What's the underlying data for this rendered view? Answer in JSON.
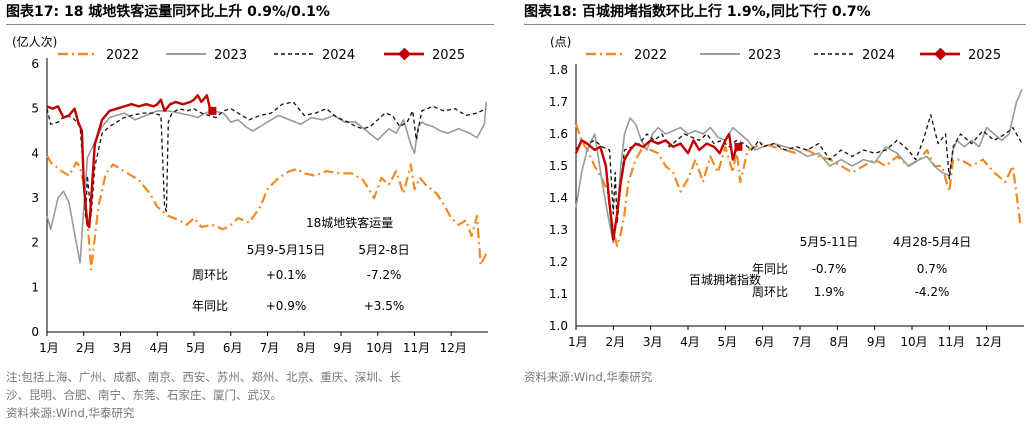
{
  "left": {
    "title": "图表17:  18 城地铁客运量同环比上升 0.9%/0.1%",
    "footnote_line1": "注:包括上海、广州、成都、南京、西安、苏州、郑州、北京、重庆、深圳、长",
    "footnote_line2": "沙、昆明、合肥、南宁、东莞、石家庄、厦门、武汉。",
    "source": "资料来源:Wind,华泰研究"
  },
  "right": {
    "title": "图表18:   百城拥堵指数环比上行 1.9%,同比下行 0.7%",
    "source": "资料来源:Wind,华泰研究"
  },
  "chart_data": [
    {
      "type": "line",
      "ylabel": "(亿人次)",
      "ylim": [
        0,
        6
      ],
      "yticks": [
        "0",
        "1",
        "2",
        "3",
        "4",
        "5",
        "6"
      ],
      "x_ticks": [
        "1月",
        "2月",
        "3月",
        "4月",
        "5月",
        "6月",
        "7月",
        "8月",
        "9月",
        "10月",
        "11月",
        "12月"
      ],
      "legend": [
        "2022",
        "2023",
        "2024",
        "2025"
      ],
      "colors": {
        "2022": "#F08A24",
        "2023": "#9A9A9A",
        "2024": "#111111",
        "2025": "#C00000"
      },
      "series": [
        {
          "name": "2022",
          "x": [
            0,
            0.1,
            0.25,
            0.4,
            0.6,
            0.8,
            0.9,
            1.0,
            1.1,
            1.2,
            1.4,
            1.6,
            1.8,
            2.0,
            2.2,
            2.5,
            2.8,
            3.0,
            3.3,
            3.6,
            3.8,
            4.0,
            4.2,
            4.5,
            4.8,
            5.0,
            5.2,
            5.5,
            5.8,
            6.0,
            6.3,
            6.6,
            6.8,
            7.0,
            7.3,
            7.6,
            8.0,
            8.3,
            8.6,
            8.9,
            9.1,
            9.3,
            9.5,
            9.7,
            9.9,
            10.0,
            10.15,
            10.3,
            10.6,
            10.8,
            11.0,
            11.2,
            11.4,
            11.55,
            11.7,
            11.8,
            11.95
          ],
          "y": [
            3.95,
            3.8,
            3.7,
            3.6,
            3.5,
            3.8,
            3.7,
            3.3,
            2.5,
            1.4,
            2.8,
            3.55,
            3.75,
            3.65,
            3.55,
            3.4,
            3.1,
            2.8,
            2.6,
            2.5,
            2.4,
            2.55,
            2.35,
            2.4,
            2.3,
            2.4,
            2.55,
            2.45,
            2.8,
            3.2,
            3.45,
            3.6,
            3.65,
            3.55,
            3.5,
            3.6,
            3.55,
            3.55,
            3.4,
            3.0,
            3.45,
            3.3,
            3.6,
            3.1,
            3.75,
            3.2,
            3.45,
            3.3,
            3.1,
            2.85,
            2.55,
            2.4,
            2.5,
            2.15,
            2.6,
            1.5,
            1.75
          ]
        },
        {
          "name": "2023",
          "x": [
            0,
            0.1,
            0.3,
            0.45,
            0.6,
            0.75,
            0.9,
            1.0,
            1.1,
            1.3,
            1.5,
            1.7,
            1.9,
            2.1,
            2.4,
            2.7,
            3.0,
            3.3,
            3.6,
            3.9,
            4.1,
            4.3,
            4.5,
            4.8,
            5.0,
            5.2,
            5.4,
            5.6,
            5.8,
            6.0,
            6.3,
            6.6,
            6.9,
            7.2,
            7.5,
            7.8,
            8.1,
            8.4,
            8.7,
            9.0,
            9.3,
            9.5,
            9.7,
            9.9,
            10.0,
            10.1,
            10.2,
            10.3,
            10.5,
            10.7,
            10.9,
            11.2,
            11.5,
            11.7,
            11.9,
            11.95
          ],
          "y": [
            2.6,
            2.3,
            3.0,
            3.15,
            2.9,
            2.2,
            1.55,
            2.8,
            3.9,
            4.25,
            4.6,
            4.8,
            4.85,
            4.9,
            4.75,
            4.85,
            4.95,
            4.95,
            4.9,
            4.85,
            4.8,
            4.9,
            4.95,
            4.9,
            4.7,
            4.75,
            4.6,
            4.5,
            4.6,
            4.7,
            4.85,
            4.75,
            4.65,
            4.8,
            4.75,
            4.85,
            4.7,
            4.7,
            4.5,
            4.3,
            4.55,
            4.45,
            4.75,
            4.2,
            4.0,
            4.6,
            4.7,
            4.65,
            4.6,
            4.5,
            4.45,
            4.55,
            4.45,
            4.35,
            4.65,
            5.15
          ]
        },
        {
          "name": "2024",
          "x": [
            0,
            0.1,
            0.3,
            0.5,
            0.7,
            0.9,
            1.0,
            1.05,
            1.1,
            1.2,
            1.3,
            1.5,
            1.7,
            1.9,
            2.1,
            2.3,
            2.6,
            2.9,
            3.1,
            3.2,
            3.25,
            3.3,
            3.4,
            3.6,
            3.8,
            4.0,
            4.2,
            4.4,
            4.6,
            4.8,
            5.0,
            5.2,
            5.5,
            5.8,
            6.1,
            6.4,
            6.7,
            7.0,
            7.3,
            7.6,
            7.9,
            8.2,
            8.4,
            8.6,
            8.8,
            9.0,
            9.2,
            9.4,
            9.6,
            9.8,
            9.95,
            10.05,
            10.2,
            10.5,
            10.8,
            11.1,
            11.4,
            11.7,
            11.95
          ],
          "y": [
            5.0,
            4.65,
            4.7,
            4.85,
            4.8,
            4.6,
            3.5,
            2.55,
            3.5,
            2.6,
            3.7,
            4.45,
            4.6,
            4.7,
            4.8,
            4.85,
            4.9,
            4.9,
            4.85,
            2.8,
            2.7,
            4.7,
            4.9,
            5.0,
            4.95,
            5.0,
            4.9,
            4.85,
            4.8,
            4.95,
            5.0,
            4.9,
            4.75,
            4.85,
            4.9,
            5.1,
            5.15,
            4.85,
            4.9,
            5.0,
            4.8,
            4.7,
            4.6,
            4.55,
            4.6,
            4.75,
            4.9,
            4.85,
            4.6,
            4.7,
            4.95,
            4.3,
            4.95,
            5.05,
            4.95,
            5.0,
            4.85,
            4.9,
            5.0
          ]
        },
        {
          "name": "2025",
          "x": [
            0,
            0.15,
            0.3,
            0.45,
            0.6,
            0.75,
            0.85,
            0.95,
            1.0,
            1.1,
            1.15,
            1.3,
            1.5,
            1.7,
            1.9,
            2.1,
            2.3,
            2.5,
            2.7,
            2.9,
            3.0,
            3.1,
            3.2,
            3.35,
            3.5,
            3.7,
            3.9,
            4.0,
            4.1,
            4.2,
            4.35,
            4.45
          ],
          "y": [
            5.05,
            5.0,
            5.05,
            4.8,
            4.85,
            5.0,
            4.7,
            4.5,
            3.3,
            2.4,
            2.35,
            4.2,
            4.75,
            4.95,
            5.0,
            5.05,
            5.1,
            5.05,
            5.1,
            5.05,
            5.1,
            5.2,
            4.95,
            5.1,
            5.15,
            5.1,
            5.15,
            5.2,
            5.3,
            5.15,
            5.3,
            4.95
          ]
        }
      ],
      "marker_2025_last": {
        "x": 4.5,
        "y": 4.95
      },
      "annotation": {
        "title": "18城地铁客运量",
        "col1": "5月9-5月15日",
        "col2": "5月2-8日",
        "row1_label": "周环比",
        "row1_v1": "+0.1%",
        "row1_v2": "-7.2%",
        "row2_label": "年同比",
        "row2_v1": "+0.9%",
        "row2_v2": "+3.5%"
      }
    },
    {
      "type": "line",
      "ylabel": "(点)",
      "ylim": [
        1.0,
        1.8
      ],
      "yticks": [
        "1.0",
        "1.1",
        "1.2",
        "1.3",
        "1.4",
        "1.5",
        "1.6",
        "1.7",
        "1.8"
      ],
      "x_ticks": [
        "1月",
        "2月",
        "3月",
        "4月",
        "5月",
        "6月",
        "7月",
        "8月",
        "9月",
        "10月",
        "11月",
        "12月"
      ],
      "legend": [
        "2022",
        "2023",
        "2024",
        "2025"
      ],
      "colors": {
        "2022": "#F08A24",
        "2023": "#9A9A9A",
        "2024": "#111111",
        "2025": "#C00000"
      },
      "series": [
        {
          "name": "2022",
          "x": [
            0,
            0.15,
            0.3,
            0.5,
            0.7,
            0.85,
            1.0,
            1.1,
            1.2,
            1.3,
            1.4,
            1.6,
            1.8,
            2.0,
            2.2,
            2.4,
            2.6,
            2.8,
            3.0,
            3.2,
            3.4,
            3.6,
            3.8,
            4.0,
            4.2,
            4.3,
            4.4,
            4.6,
            4.8,
            5.0,
            5.3,
            5.6,
            5.9,
            6.2,
            6.5,
            6.8,
            7.1,
            7.4,
            7.7,
            8.0,
            8.3,
            8.6,
            8.9,
            9.2,
            9.4,
            9.6,
            9.8,
            10.0,
            10.1,
            10.3,
            10.6,
            10.9,
            11.2,
            11.5,
            11.7,
            11.9
          ],
          "y": [
            1.63,
            1.58,
            1.55,
            1.5,
            1.46,
            1.42,
            1.3,
            1.25,
            1.29,
            1.35,
            1.45,
            1.52,
            1.56,
            1.55,
            1.54,
            1.5,
            1.48,
            1.42,
            1.46,
            1.52,
            1.45,
            1.53,
            1.48,
            1.56,
            1.48,
            1.55,
            1.45,
            1.55,
            1.56,
            1.57,
            1.56,
            1.55,
            1.54,
            1.55,
            1.53,
            1.52,
            1.5,
            1.48,
            1.5,
            1.52,
            1.5,
            1.53,
            1.5,
            1.52,
            1.55,
            1.5,
            1.5,
            1.42,
            1.52,
            1.52,
            1.5,
            1.52,
            1.48,
            1.45,
            1.5,
            1.32
          ]
        },
        {
          "name": "2023",
          "x": [
            0,
            0.15,
            0.3,
            0.5,
            0.7,
            0.85,
            1.0,
            1.1,
            1.2,
            1.3,
            1.45,
            1.6,
            1.75,
            1.9,
            2.05,
            2.2,
            2.4,
            2.6,
            2.8,
            3.0,
            3.2,
            3.4,
            3.6,
            3.8,
            4.0,
            4.2,
            4.4,
            4.6,
            4.8,
            5.0,
            5.3,
            5.6,
            5.9,
            6.2,
            6.5,
            6.8,
            7.1,
            7.4,
            7.7,
            8.0,
            8.3,
            8.6,
            8.9,
            9.2,
            9.4,
            9.6,
            9.8,
            10.0,
            10.1,
            10.2,
            10.4,
            10.6,
            10.8,
            11.0,
            11.2,
            11.4,
            11.6,
            11.8,
            11.95
          ],
          "y": [
            1.37,
            1.48,
            1.55,
            1.6,
            1.45,
            1.35,
            1.26,
            1.35,
            1.5,
            1.6,
            1.65,
            1.63,
            1.58,
            1.55,
            1.6,
            1.62,
            1.6,
            1.61,
            1.62,
            1.6,
            1.61,
            1.6,
            1.62,
            1.59,
            1.58,
            1.62,
            1.6,
            1.58,
            1.55,
            1.56,
            1.57,
            1.56,
            1.55,
            1.53,
            1.54,
            1.5,
            1.52,
            1.5,
            1.52,
            1.51,
            1.56,
            1.54,
            1.5,
            1.52,
            1.53,
            1.5,
            1.48,
            1.47,
            1.55,
            1.58,
            1.56,
            1.58,
            1.56,
            1.62,
            1.6,
            1.58,
            1.6,
            1.7,
            1.74
          ]
        },
        {
          "name": "2024",
          "x": [
            0,
            0.15,
            0.3,
            0.5,
            0.7,
            0.9,
            1.0,
            1.05,
            1.1,
            1.2,
            1.3,
            1.5,
            1.7,
            1.9,
            2.1,
            2.3,
            2.5,
            2.7,
            2.9,
            3.1,
            3.3,
            3.5,
            3.7,
            3.9,
            4.1,
            4.3,
            4.5,
            4.7,
            4.9,
            5.0,
            5.3,
            5.6,
            5.9,
            6.2,
            6.5,
            6.8,
            7.1,
            7.4,
            7.7,
            8.0,
            8.3,
            8.6,
            8.9,
            9.1,
            9.3,
            9.5,
            9.7,
            9.9,
            10.0,
            10.1,
            10.3,
            10.6,
            10.9,
            11.2,
            11.5,
            11.7,
            11.95
          ],
          "y": [
            1.55,
            1.58,
            1.57,
            1.58,
            1.56,
            1.55,
            1.35,
            1.48,
            1.32,
            1.45,
            1.55,
            1.56,
            1.57,
            1.6,
            1.58,
            1.6,
            1.56,
            1.58,
            1.6,
            1.59,
            1.58,
            1.6,
            1.57,
            1.58,
            1.56,
            1.58,
            1.57,
            1.55,
            1.58,
            1.56,
            1.57,
            1.55,
            1.56,
            1.55,
            1.57,
            1.52,
            1.55,
            1.53,
            1.55,
            1.54,
            1.55,
            1.58,
            1.55,
            1.52,
            1.58,
            1.66,
            1.57,
            1.6,
            1.46,
            1.56,
            1.6,
            1.57,
            1.61,
            1.58,
            1.6,
            1.62,
            1.57
          ]
        },
        {
          "name": "2025",
          "x": [
            0,
            0.15,
            0.3,
            0.5,
            0.65,
            0.8,
            0.9,
            1.0,
            1.1,
            1.2,
            1.3,
            1.45,
            1.6,
            1.8,
            2.0,
            2.2,
            2.4,
            2.6,
            2.8,
            3.0,
            3.15,
            3.3,
            3.5,
            3.7,
            3.85,
            4.0,
            4.1,
            4.2,
            4.3
          ],
          "y": [
            1.54,
            1.58,
            1.57,
            1.55,
            1.56,
            1.5,
            1.38,
            1.27,
            1.35,
            1.45,
            1.52,
            1.55,
            1.57,
            1.56,
            1.58,
            1.57,
            1.58,
            1.56,
            1.57,
            1.54,
            1.58,
            1.55,
            1.57,
            1.56,
            1.54,
            1.58,
            1.6,
            1.52,
            1.56
          ]
        }
      ],
      "marker_2025_last": {
        "x": 4.35,
        "y": 1.56
      },
      "annotation": {
        "title": "百城拥堵指数",
        "col1": "5月5-11日",
        "col2": "4月28-5月4日",
        "row1_label": "年同比",
        "row1_v1": "-0.7%",
        "row1_v2": "0.7%",
        "row2_label": "周环比",
        "row2_v1": "1.9%",
        "row2_v2": "-4.2%"
      }
    }
  ]
}
